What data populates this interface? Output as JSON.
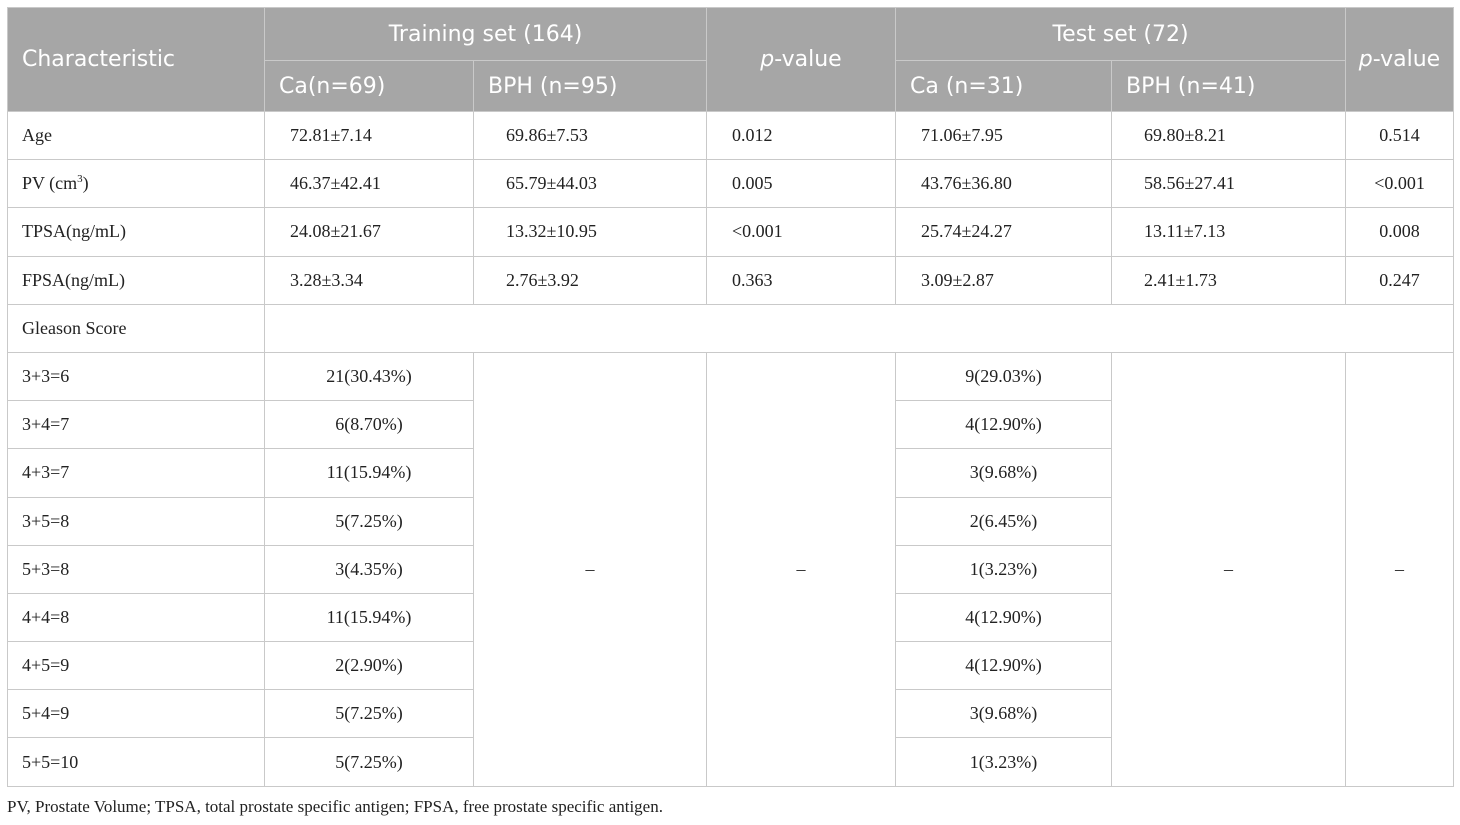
{
  "header": {
    "characteristic": "Characteristic",
    "training_set": "Training set (164)",
    "test_set": "Test set (72)",
    "p_value_italic": "p",
    "p_value_rest": "-value",
    "training_ca": "Ca(n=69)",
    "training_bph": "BPH (n=95)",
    "test_ca": "Ca (n=31)",
    "test_bph": "BPH (n=41)"
  },
  "rows": [
    {
      "label": "Age",
      "tr_ca": "72.81±7.14",
      "tr_bph": "69.86±7.53",
      "tr_p": "0.012",
      "te_ca": "71.06±7.95",
      "te_bph": "69.80±8.21",
      "te_p": "0.514"
    },
    {
      "label_base": "PV (cm",
      "label_sup": "3",
      "label_end": ")",
      "tr_ca": "46.37±42.41",
      "tr_bph": "65.79±44.03",
      "tr_p": "0.005",
      "te_ca": "43.76±36.80",
      "te_bph": "58.56±27.41",
      "te_p": "<0.001"
    },
    {
      "label": "TPSA(ng/mL)",
      "tr_ca": "24.08±21.67",
      "tr_bph": "13.32±10.95",
      "tr_p": "<0.001",
      "te_ca": "25.74±24.27",
      "te_bph": "13.11±7.13",
      "te_p": "0.008"
    },
    {
      "label": "FPSA(ng/mL)",
      "tr_ca": "3.28±3.34",
      "tr_bph": "2.76±3.92",
      "tr_p": "0.363",
      "te_ca": "3.09±2.87",
      "te_bph": "2.41±1.73",
      "te_p": "0.247"
    }
  ],
  "gleason": {
    "label": "Gleason Score",
    "dash": "–",
    "rows": [
      {
        "score": "3+3=6",
        "tr_ca": "21(30.43%)",
        "te_ca": "9(29.03%)"
      },
      {
        "score": "3+4=7",
        "tr_ca": "6(8.70%)",
        "te_ca": "4(12.90%)"
      },
      {
        "score": "4+3=7",
        "tr_ca": "11(15.94%)",
        "te_ca": "3(9.68%)"
      },
      {
        "score": "3+5=8",
        "tr_ca": "5(7.25%)",
        "te_ca": "2(6.45%)"
      },
      {
        "score": "5+3=8",
        "tr_ca": "3(4.35%)",
        "te_ca": "1(3.23%)"
      },
      {
        "score": "4+4=8",
        "tr_ca": "11(15.94%)",
        "te_ca": "4(12.90%)"
      },
      {
        "score": "4+5=9",
        "tr_ca": "2(2.90%)",
        "te_ca": "4(12.90%)"
      },
      {
        "score": "5+4=9",
        "tr_ca": "5(7.25%)",
        "te_ca": "3(9.68%)"
      },
      {
        "score": "5+5=10",
        "tr_ca": "5(7.25%)",
        "te_ca": "1(3.23%)"
      }
    ]
  },
  "footnote": "PV, Prostate Volume; TPSA, total prostate specific antigen; FPSA, free prostate specific antigen."
}
